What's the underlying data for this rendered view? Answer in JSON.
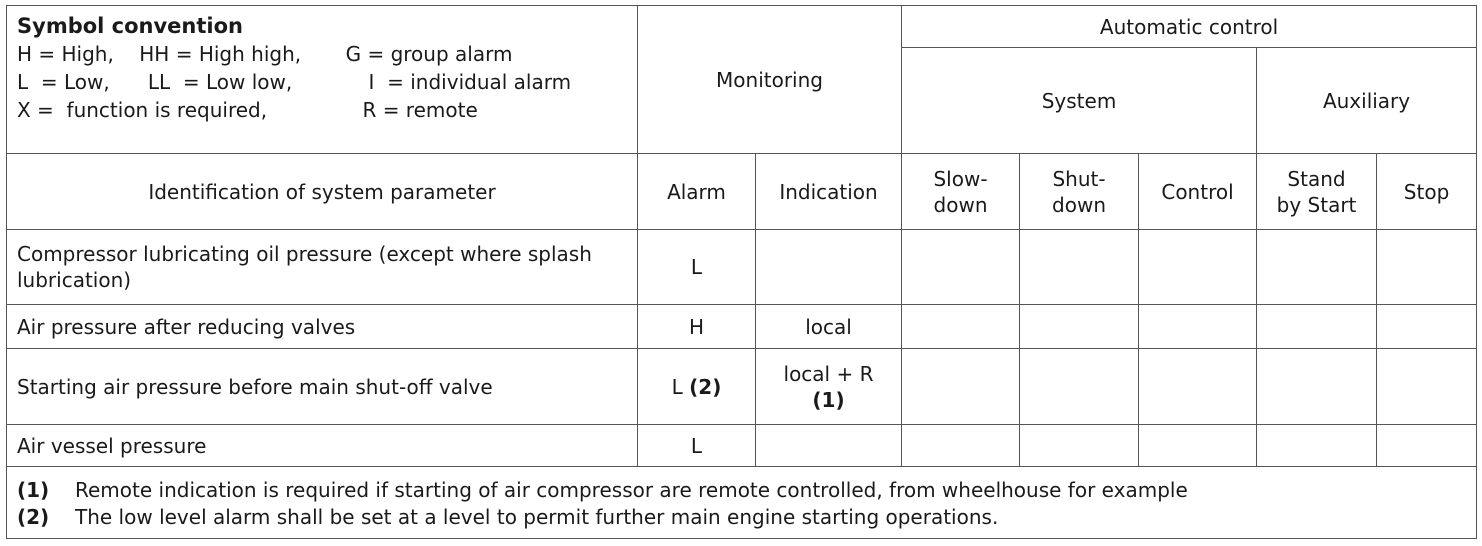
{
  "legend": {
    "title": "Symbol convention",
    "lines": [
      "H = High,    HH = High high,       G = group alarm",
      "L  = Low,      LL  = Low low,            I  = individual alarm",
      "X =  function is required,               R = remote"
    ]
  },
  "headers": {
    "monitoring": "Monitoring",
    "automatic_control": "Automatic control",
    "system": "System",
    "auxiliary": "Auxiliary",
    "identification": "Identification of system parameter",
    "alarm": "Alarm",
    "indication": "Indication",
    "slowdown_1": "Slow-",
    "slowdown_2": "down",
    "shutdown_1": "Shut-",
    "shutdown_2": "down",
    "control": "Control",
    "standby_1": "Stand",
    "standby_2": "by Start",
    "stop": "Stop"
  },
  "rows": [
    {
      "param": "Compressor lubricating oil pressure (except where splash lubrication)",
      "alarm": "L",
      "alarm_note": "",
      "indication": "",
      "indication_note": ""
    },
    {
      "param": "Air pressure after reducing valves",
      "alarm": "H",
      "alarm_note": "",
      "indication": "local",
      "indication_note": ""
    },
    {
      "param": "Starting air pressure before main shut-off valve",
      "alarm": "L ",
      "alarm_note": "(2)",
      "indication": "local + R",
      "indication_note": "(1)"
    },
    {
      "param": "Air vessel pressure",
      "alarm": "L",
      "alarm_note": "",
      "indication": "",
      "indication_note": ""
    }
  ],
  "notes": [
    {
      "num": "(1)",
      "text": "Remote indication is required if starting of air compressor are remote controlled, from wheelhouse for example"
    },
    {
      "num": "(2)",
      "text": "The low level alarm shall be set at a level to permit further main engine starting operations."
    }
  ]
}
